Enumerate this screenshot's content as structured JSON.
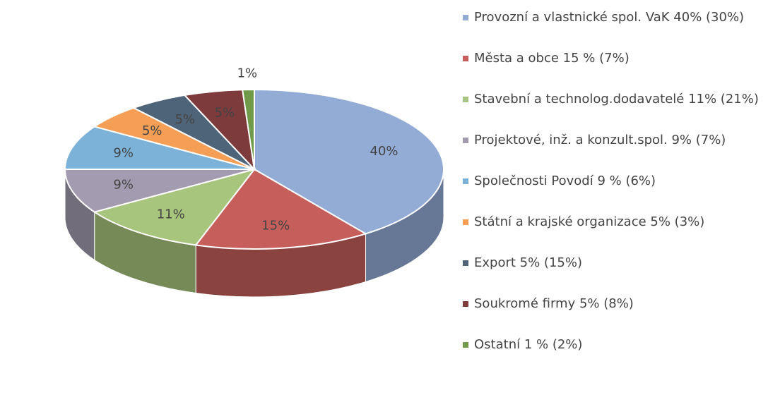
{
  "chart_data": {
    "type": "pie",
    "categories": [
      "Provozní a vlastnické spol. VaK 40% (30%)",
      "Města a obce 15 % (7%)",
      "Stavební a technolog.dodavatelé 11% (21%)",
      "Projektové, inž. a konzult.spol. 9% (7%)",
      "Společnosti Povodí 9 % (6%)",
      "Státní a krajské organizace 5% (3%)",
      "Export 5% (15%)",
      "Soukromé firmy 5% (8%)",
      "Ostatní 1 % (2%)"
    ],
    "values": [
      40,
      15,
      11,
      9,
      9,
      5,
      5,
      5,
      1
    ],
    "value_labels": [
      "40%",
      "15%",
      "11%",
      "9%",
      "9%",
      "5%",
      "5%",
      "5%",
      "1%"
    ],
    "colors": [
      "#92acd6",
      "#c65f5b",
      "#a7c57c",
      "#a39cb0",
      "#7db2d8",
      "#f59e55",
      "#4e6479",
      "#7d3b3b",
      "#6f9a4a"
    ],
    "legend": "right"
  }
}
